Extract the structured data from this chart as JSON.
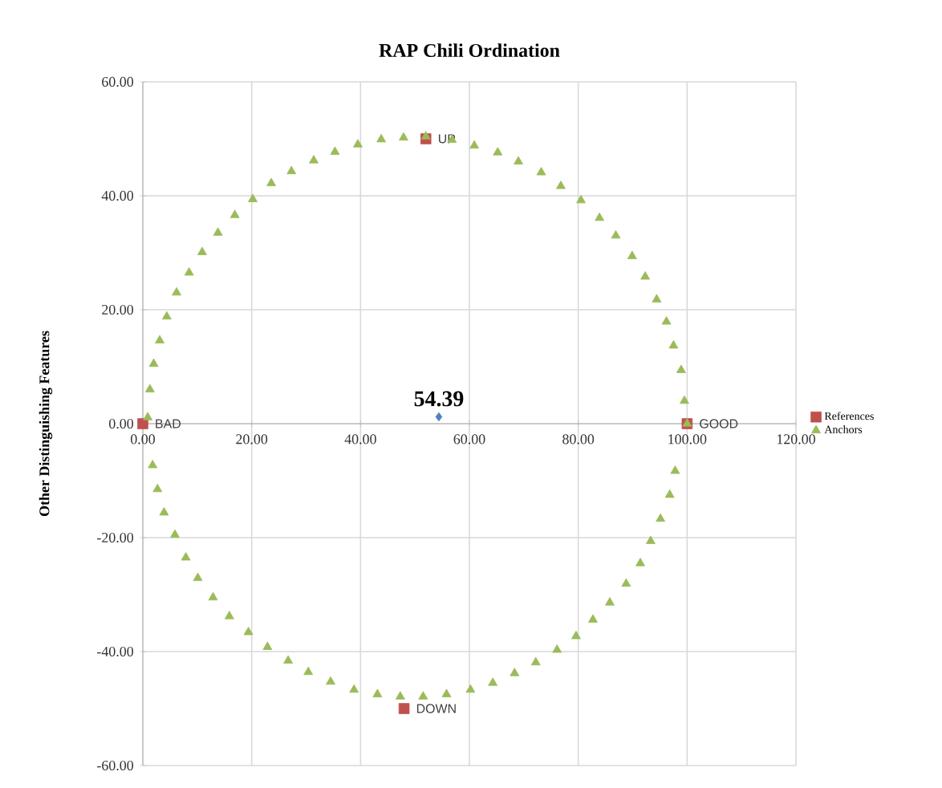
{
  "chart_data": {
    "type": "scatter",
    "title": "RAP Chili  Ordination",
    "ylabel": "Other Distinguishing Features",
    "xlim": [
      0,
      120
    ],
    "ylim": [
      -60,
      60
    ],
    "xticks": [
      {
        "value": 0,
        "label": "0.00"
      },
      {
        "value": 20,
        "label": "20.00"
      },
      {
        "value": 40,
        "label": "40.00"
      },
      {
        "value": 60,
        "label": "60.00"
      },
      {
        "value": 80,
        "label": "80.00"
      },
      {
        "value": 100,
        "label": "100.00"
      },
      {
        "value": 120,
        "label": "120.00"
      }
    ],
    "yticks": [
      {
        "value": -60,
        "label": "-60.00"
      },
      {
        "value": -40,
        "label": "-40.00"
      },
      {
        "value": -20,
        "label": "-20.00"
      },
      {
        "value": 0,
        "label": "0.00"
      },
      {
        "value": 20,
        "label": "20.00"
      },
      {
        "value": 40,
        "label": "40.00"
      },
      {
        "value": 60,
        "label": "60.00"
      }
    ],
    "grid": true,
    "legend": "right",
    "series": [
      {
        "name": "References",
        "color": "#c0504d",
        "marker": "square",
        "x": [
          0,
          100,
          52,
          48
        ],
        "values": [
          0,
          0,
          50,
          -50
        ]
      },
      {
        "name": "Anchors",
        "color": "#9bbb59",
        "marker": "triangle",
        "x": [
          0.9,
          1.3,
          2.0,
          3.1,
          4.4,
          6.2,
          8.5,
          10.9,
          13.8,
          16.9,
          20.2,
          23.6,
          27.3,
          31.4,
          35.3,
          39.5,
          43.8,
          47.9,
          52.0,
          56.8,
          60.9,
          65.2,
          69.0,
          73.2,
          76.8,
          80.5,
          83.9,
          86.9,
          89.9,
          92.3,
          94.4,
          96.2,
          97.5,
          98.9,
          99.5,
          100,
          97.8,
          96.8,
          95.1,
          93.3,
          91.4,
          88.8,
          85.8,
          82.7,
          79.6,
          76.1,
          72.2,
          68.3,
          64.3,
          60.2,
          55.8,
          51.5,
          47.3,
          43.1,
          38.8,
          34.5,
          30.4,
          26.7,
          22.9,
          19.4,
          15.9,
          12.9,
          10.1,
          7.9,
          5.9,
          3.9,
          2.7,
          1.8
        ],
        "values": [
          1.1,
          6.0,
          10.5,
          14.6,
          18.8,
          23.0,
          26.5,
          30.1,
          33.5,
          36.6,
          39.4,
          42.2,
          44.3,
          46.2,
          47.7,
          49.0,
          49.9,
          50.2,
          50.4,
          49.8,
          48.8,
          47.6,
          46.0,
          44.1,
          41.7,
          39.2,
          36.1,
          33.0,
          29.4,
          25.8,
          21.8,
          17.9,
          13.7,
          9.4,
          4.0,
          0,
          -8.3,
          -12.5,
          -16.7,
          -20.6,
          -24.5,
          -28.1,
          -31.4,
          -34.4,
          -37.3,
          -39.7,
          -41.9,
          -43.8,
          -45.5,
          -46.7,
          -47.5,
          -47.9,
          -47.9,
          -47.5,
          -46.7,
          -45.3,
          -43.6,
          -41.6,
          -39.2,
          -36.6,
          -33.8,
          -30.5,
          -27.1,
          -23.5,
          -19.5,
          -15.6,
          -11.5,
          -7.3
        ]
      },
      {
        "color": "#4f81bd",
        "marker": "diamond",
        "x": [
          54.39
        ],
        "values": [
          1.2
        ]
      }
    ],
    "annotations": [
      {
        "text": "54.39",
        "x": 54.39,
        "y": 1.2
      },
      {
        "text": "BAD",
        "x": 0,
        "y": 0
      },
      {
        "text": "GOOD",
        "x": 100,
        "y": 0
      },
      {
        "text": "UP",
        "x": 52,
        "y": 50
      },
      {
        "text": "DOWN",
        "x": 48,
        "y": -50
      }
    ]
  }
}
